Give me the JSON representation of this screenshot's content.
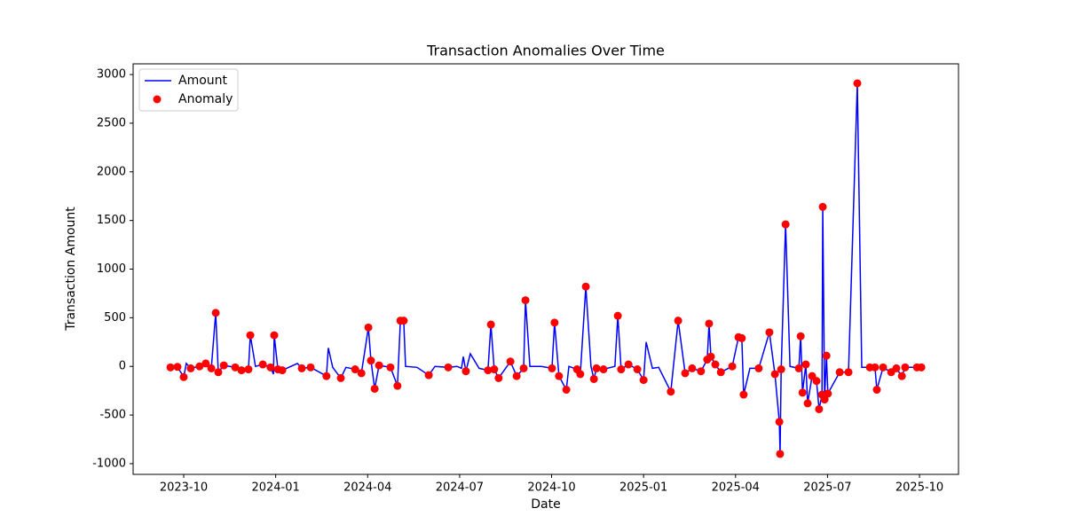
{
  "chart_data": {
    "type": "line",
    "title": "Transaction Anomalies Over Time",
    "x_label": "Date",
    "y_label": "Transaction Amount",
    "xlim": [
      2023.6125,
      2025.856
    ],
    "ylim": [
      -1110,
      3110
    ],
    "xticks": [
      {
        "value": 2023.75,
        "label": "2023-10"
      },
      {
        "value": 2024.0,
        "label": "2024-01"
      },
      {
        "value": 2024.25,
        "label": "2024-04"
      },
      {
        "value": 2024.5,
        "label": "2024-07"
      },
      {
        "value": 2024.75,
        "label": "2024-10"
      },
      {
        "value": 2025.0,
        "label": "2025-01"
      },
      {
        "value": 2025.25,
        "label": "2025-04"
      },
      {
        "value": 2025.5,
        "label": "2025-07"
      },
      {
        "value": 2025.75,
        "label": "2025-10"
      }
    ],
    "yticks": [
      -1000,
      -500,
      0,
      500,
      1000,
      1500,
      2000,
      2500,
      3000
    ],
    "grid": false,
    "legend": "upper-left",
    "series": [
      {
        "name": "Amount",
        "type": "line",
        "color": "#0000ff",
        "x": [
          2023.714,
          2023.733,
          2023.75,
          2023.757,
          2023.769,
          2023.793,
          2023.81,
          2023.825,
          2023.837,
          2023.844,
          2023.859,
          2023.89,
          2023.907,
          2023.926,
          2023.931,
          2023.945,
          2023.965,
          2023.986,
          2023.994,
          2023.996,
          2024.006,
          2024.018,
          2024.059,
          2024.071,
          2024.095,
          2024.138,
          2024.143,
          2024.155,
          2024.177,
          2024.191,
          2024.216,
          2024.233,
          2024.252,
          2024.259,
          2024.269,
          2024.281,
          2024.312,
          2024.331,
          2024.339,
          2024.348,
          2024.353,
          2024.384,
          2024.416,
          2024.433,
          2024.469,
          2024.493,
          2024.505,
          2024.51,
          2024.517,
          2024.529,
          2024.553,
          2024.577,
          2024.585,
          2024.594,
          2024.606,
          2024.638,
          2024.655,
          2024.674,
          2024.679,
          2024.691,
          2024.722,
          2024.751,
          2024.758,
          2024.77,
          2024.79,
          2024.797,
          2024.819,
          2024.828,
          2024.843,
          2024.857,
          2024.865,
          2024.872,
          2024.891,
          2024.922,
          2024.93,
          2024.939,
          2024.959,
          2024.983,
          2025.0,
          2025.007,
          2025.024,
          2025.041,
          2025.074,
          2025.094,
          2025.113,
          2025.132,
          2025.156,
          2025.173,
          2025.178,
          2025.183,
          2025.195,
          2025.21,
          2025.241,
          2025.258,
          2025.267,
          2025.272,
          2025.289,
          2025.313,
          2025.342,
          2025.357,
          2025.369,
          2025.371,
          2025.374,
          2025.386,
          2025.398,
          2025.422,
          2025.427,
          2025.432,
          2025.441,
          2025.446,
          2025.458,
          2025.47,
          2025.477,
          2025.485,
          2025.487,
          2025.492,
          2025.497,
          2025.501,
          2025.533,
          2025.557,
          2025.581,
          2025.593,
          2025.615,
          2025.629,
          2025.634,
          2025.651,
          2025.673,
          2025.687,
          2025.702,
          2025.711,
          2025.743,
          2025.755
        ],
        "values": [
          -10,
          -5,
          -110,
          30,
          -20,
          0,
          30,
          -20,
          550,
          -60,
          10,
          -10,
          -40,
          -30,
          320,
          0,
          20,
          -10,
          -80,
          320,
          -30,
          -40,
          30,
          -20,
          -10,
          -100,
          190,
          -10,
          -120,
          -10,
          -30,
          -70,
          400,
          60,
          -230,
          10,
          -10,
          -200,
          470,
          470,
          0,
          -10,
          -90,
          0,
          -10,
          0,
          -20,
          100,
          -50,
          130,
          -20,
          -40,
          430,
          -30,
          -120,
          50,
          -100,
          -20,
          680,
          0,
          0,
          -20,
          450,
          -100,
          -240,
          0,
          -30,
          -80,
          820,
          0,
          -130,
          -20,
          -30,
          0,
          520,
          -30,
          20,
          -30,
          -140,
          250,
          -20,
          -10,
          -260,
          470,
          -70,
          -20,
          -50,
          70,
          440,
          100,
          20,
          -60,
          0,
          300,
          290,
          -290,
          -20,
          -20,
          350,
          -80,
          -570,
          -900,
          -30,
          1460,
          0,
          -20,
          310,
          -270,
          20,
          -380,
          -100,
          -150,
          -440,
          -290,
          1640,
          -340,
          110,
          -280,
          -60,
          -60,
          2910,
          -10,
          -10,
          -10,
          -240,
          -10,
          -60,
          -20,
          -100,
          -10,
          -10,
          -10
        ]
      },
      {
        "name": "Anomaly",
        "type": "scatter",
        "color": "#ff0000",
        "x": [
          2023.714,
          2023.733,
          2023.75,
          2023.769,
          2023.793,
          2023.81,
          2023.825,
          2023.837,
          2023.844,
          2023.859,
          2023.89,
          2023.907,
          2023.926,
          2023.931,
          2023.965,
          2023.986,
          2023.996,
          2024.006,
          2024.018,
          2024.071,
          2024.095,
          2024.138,
          2024.177,
          2024.216,
          2024.233,
          2024.252,
          2024.259,
          2024.269,
          2024.281,
          2024.312,
          2024.331,
          2024.339,
          2024.348,
          2024.416,
          2024.469,
          2024.517,
          2024.577,
          2024.585,
          2024.594,
          2024.606,
          2024.638,
          2024.655,
          2024.674,
          2024.679,
          2024.751,
          2024.758,
          2024.77,
          2024.79,
          2024.819,
          2024.828,
          2024.843,
          2024.865,
          2024.872,
          2024.891,
          2024.93,
          2024.939,
          2024.959,
          2024.983,
          2025.0,
          2025.074,
          2025.094,
          2025.113,
          2025.132,
          2025.156,
          2025.173,
          2025.178,
          2025.183,
          2025.195,
          2025.21,
          2025.241,
          2025.258,
          2025.267,
          2025.272,
          2025.313,
          2025.342,
          2025.357,
          2025.369,
          2025.371,
          2025.374,
          2025.386,
          2025.422,
          2025.427,
          2025.432,
          2025.441,
          2025.446,
          2025.458,
          2025.47,
          2025.477,
          2025.485,
          2025.487,
          2025.492,
          2025.497,
          2025.501,
          2025.533,
          2025.557,
          2025.581,
          2025.615,
          2025.629,
          2025.634,
          2025.651,
          2025.673,
          2025.687,
          2025.702,
          2025.711,
          2025.743,
          2025.755
        ],
        "values": [
          -10,
          -5,
          -110,
          -20,
          0,
          30,
          -20,
          550,
          -60,
          10,
          -10,
          -40,
          -30,
          320,
          20,
          -10,
          320,
          -30,
          -40,
          -20,
          -10,
          -100,
          -120,
          -30,
          -70,
          400,
          60,
          -230,
          10,
          -10,
          -200,
          470,
          470,
          -90,
          -10,
          -50,
          -40,
          430,
          -30,
          -120,
          50,
          -100,
          -20,
          680,
          -20,
          450,
          -100,
          -240,
          -30,
          -80,
          820,
          -130,
          -20,
          -30,
          520,
          -30,
          20,
          -30,
          -140,
          -260,
          470,
          -70,
          -20,
          -50,
          70,
          440,
          100,
          20,
          -60,
          0,
          300,
          290,
          -290,
          -20,
          350,
          -80,
          -570,
          -900,
          -30,
          1460,
          -20,
          310,
          -270,
          20,
          -380,
          -100,
          -150,
          -440,
          -290,
          1640,
          -340,
          110,
          -280,
          -60,
          -60,
          2910,
          -10,
          -10,
          -240,
          -10,
          -60,
          -20,
          -100,
          -10,
          -10,
          -10
        ]
      }
    ]
  }
}
